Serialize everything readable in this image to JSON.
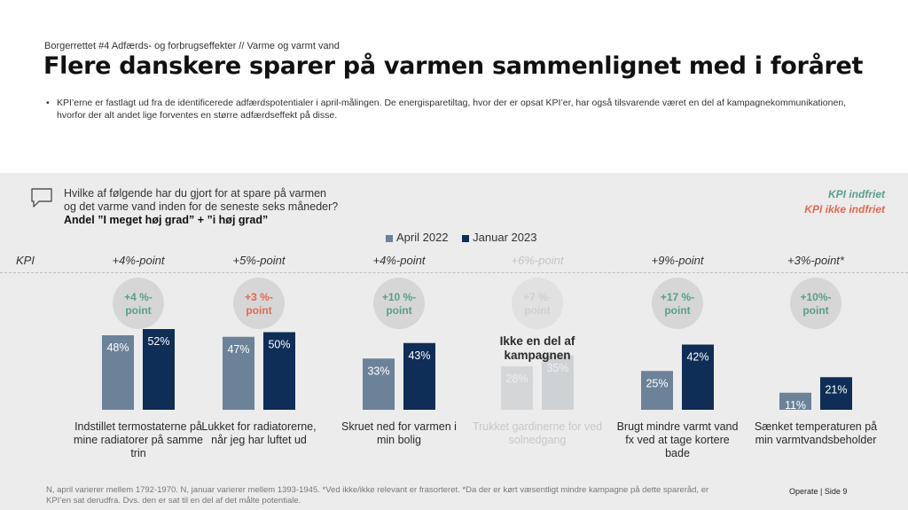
{
  "header": {
    "breadcrumb": "Borgerrettet #4 Adfærds- og forbrugseffekter // Varme og varmt vand",
    "title": "Flere danskere sparer på varmen sammenlignet med i foråret",
    "bullet": "KPI’erne er fastlagt ud fra de identificerede adfærdspotentialer i april-målingen. De energisparetiltag, hvor der er opsat KPI’er, har også tilsvarende været en del af kampagnekommunikationen, hvorfor der alt andet lige forventes en større adfærdseffekt på disse."
  },
  "question": {
    "line1": "Hvilke af følgende har du gjort for at spare på varmen",
    "line2": "og det varme vand inden for de seneste seks måneder?",
    "sub": "Andel ”I meget høj grad” + ”i høj grad”"
  },
  "kpi_legend": {
    "met": "KPI indfriet",
    "not_met": "KPI ikke indfriet"
  },
  "kpi_row_label": "KPI",
  "colors": {
    "april": "#6b8299",
    "januar": "#0e2d57",
    "april_dim": "#d4d6d8",
    "januar_dim": "#cfd2d5",
    "met": "#5a9e8a",
    "not_met": "#e26a52",
    "circle": "#d6d6d6"
  },
  "chart_data": {
    "type": "bar",
    "categories": [
      "Indstillet termostaterne på mine radiatorer på samme trin",
      "Lukket for radiatorerne, når jeg har luftet ud",
      "Skruet ned for varmen i min bolig",
      "Trukket gardinerne for ved solnedgang",
      "Brugt mindre varmt vand fx ved at tage kortere bade",
      "Sænket temperaturen på min varmtvandsbeholder"
    ],
    "series": [
      {
        "name": "April 2022",
        "values": [
          48,
          47,
          33,
          28,
          25,
          11
        ]
      },
      {
        "name": "Januar 2023",
        "values": [
          52,
          50,
          43,
          35,
          42,
          21
        ]
      }
    ],
    "value_labels": {
      "april": [
        "48%",
        "47%",
        "33%",
        "28%",
        "25%",
        "11%"
      ],
      "januar": [
        "52%",
        "50%",
        "43%",
        "35%",
        "42%",
        "21%"
      ]
    },
    "kpi_targets": [
      "+4%-point",
      "+5%-point",
      "+4%-point",
      "+6%-point",
      "+9%-point",
      "+3%-point*"
    ],
    "change_line1": [
      "+4 %-",
      "+3 %-",
      "+10 %-",
      "+7 %-",
      "+17 %-",
      "+10%-"
    ],
    "change_line2": [
      "point",
      "point",
      "point",
      "point",
      "point",
      "point"
    ],
    "change_status": [
      "met",
      "not_met",
      "met",
      "dim",
      "met",
      "met"
    ],
    "dimmed": [
      false,
      false,
      false,
      true,
      false,
      false
    ],
    "category_lines": [
      [
        "Indstillet termostaterne på",
        "mine radiatorer på samme",
        "trin"
      ],
      [
        "Lukket for radiatorerne,",
        "når jeg har luftet ud"
      ],
      [
        "Skruet ned for varmen i",
        "min bolig"
      ],
      [
        "Trukket gardinerne for ved",
        "solnedgang"
      ],
      [
        "Brugt mindre varmt vand",
        "fx ved at tage kortere",
        "bade"
      ],
      [
        "Sænket temperaturen på",
        "min varmtvandsbeholder"
      ]
    ],
    "overlay_note": [
      "Ikke en del af",
      "kampagnen"
    ],
    "ylim": [
      0,
      100
    ],
    "legend": "top-center"
  },
  "footer": {
    "note": "N, april varierer mellem 1792-1970. N, januar varierer mellem 1393-1945. *Ved ikke/ikke relevant er frasorteret. *Da der er kørt væsentligt mindre kampagne på dette spareråd, er KPI’en sat derudfra. Dvs. den er sat til en del af det målte potentiale.",
    "brand": "Operate",
    "separator": "|",
    "page": "Side 9"
  }
}
